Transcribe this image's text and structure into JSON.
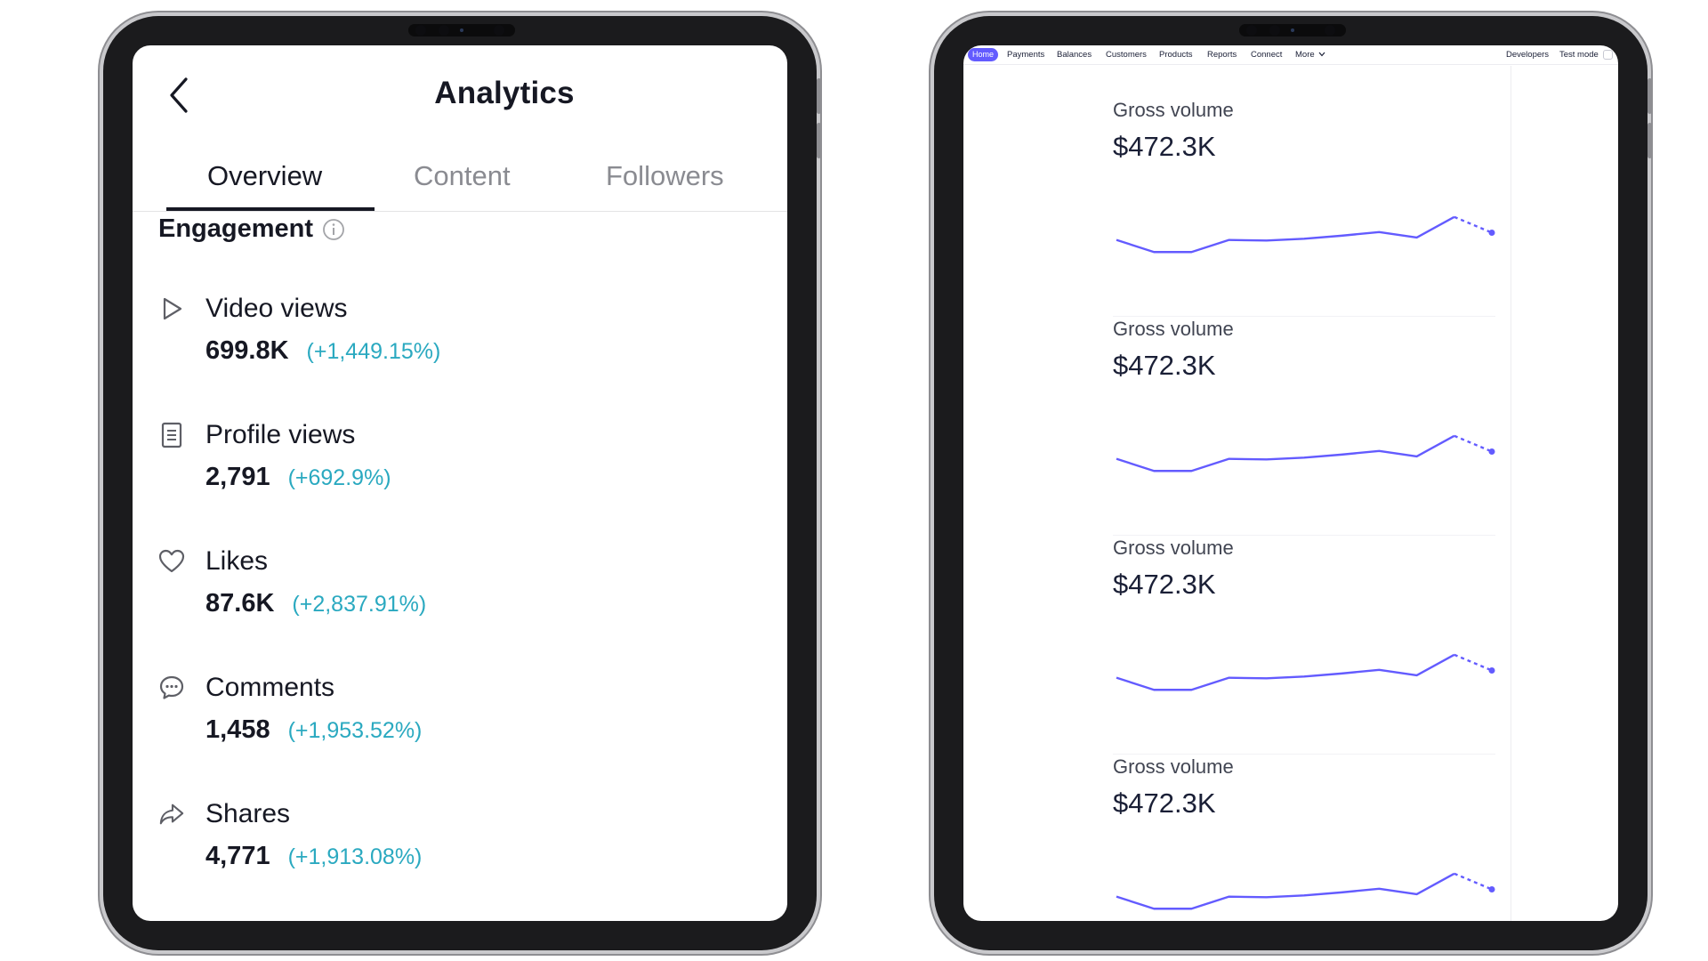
{
  "analytics": {
    "title": "Analytics",
    "tabs": [
      {
        "label": "Overview",
        "active": true
      },
      {
        "label": "Content",
        "active": false
      },
      {
        "label": "Followers",
        "active": false
      }
    ],
    "section_title": "Engagement",
    "accent_color": "#2aa9c0",
    "metrics": [
      {
        "label": "Video views",
        "value": "699.8K",
        "change": "(+1,449.15%)",
        "icon": "play-icon"
      },
      {
        "label": "Profile views",
        "value": "2,791",
        "change": "(+692.9%)",
        "icon": "profile-document-icon"
      },
      {
        "label": "Likes",
        "value": "87.6K",
        "change": "(+2,837.91%)",
        "icon": "heart-icon"
      },
      {
        "label": "Comments",
        "value": "1,458",
        "change": "(+1,953.52%)",
        "icon": "comment-icon"
      },
      {
        "label": "Shares",
        "value": "4,771",
        "change": "(+1,913.08%)",
        "icon": "share-icon"
      }
    ]
  },
  "dashboard": {
    "nav_left": [
      "Home",
      "Payments",
      "Balances",
      "Customers",
      "Products",
      "Reports",
      "Connect",
      "More"
    ],
    "nav_right": [
      "Developers",
      "Test mode"
    ],
    "active_nav": "Home",
    "accent_color": "#635bff",
    "cards": [
      {
        "label": "Gross volume",
        "value": "$472.3K"
      },
      {
        "label": "Gross volume",
        "value": "$472.3K"
      },
      {
        "label": "Gross volume",
        "value": "$472.3K"
      },
      {
        "label": "Gross volume",
        "value": "$472.3K"
      }
    ],
    "sparkline": {
      "solid": [
        52,
        32,
        32,
        52,
        51,
        54,
        59,
        65,
        56,
        90
      ],
      "dashed": [
        90,
        64
      ]
    }
  }
}
